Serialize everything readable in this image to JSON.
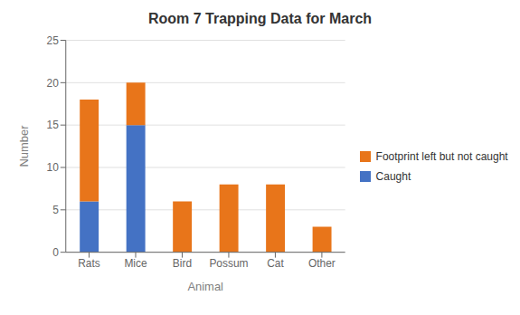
{
  "chart_data": {
    "type": "bar",
    "stacked": true,
    "title": "Room 7 Trapping Data for March",
    "xlabel": "Animal",
    "ylabel": "Number",
    "categories": [
      "Rats",
      "Mice",
      "Bird",
      "Possum",
      "Cat",
      "Other"
    ],
    "series": [
      {
        "name": "Caught",
        "color": "#4472C4",
        "values": [
          6,
          15,
          0,
          0,
          0,
          0
        ]
      },
      {
        "name": "Footprint left but not caught",
        "color": "#E8751A",
        "values": [
          12,
          5,
          6,
          8,
          8,
          3
        ]
      }
    ],
    "ylim": [
      0,
      25
    ],
    "yticks": [
      0,
      5,
      10,
      15,
      20,
      25
    ],
    "grid": true,
    "legend": "right"
  }
}
